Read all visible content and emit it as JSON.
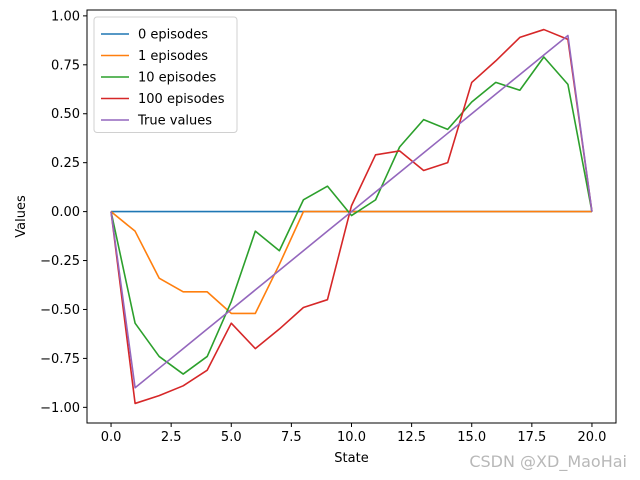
{
  "chart_data": {
    "type": "line",
    "xlabel": "State",
    "ylabel": "Values",
    "xlim": [
      -1,
      21
    ],
    "ylim": [
      -1.08,
      1.03
    ],
    "xticks": [
      "0.0",
      "2.5",
      "5.0",
      "7.5",
      "10.0",
      "12.5",
      "15.0",
      "17.5",
      "20.0"
    ],
    "xtick_values": [
      0,
      2.5,
      5,
      7.5,
      10,
      12.5,
      15,
      17.5,
      20
    ],
    "yticks": [
      "−1.00",
      "−0.75",
      "−0.50",
      "−0.25",
      "0.00",
      "0.25",
      "0.50",
      "0.75",
      "1.00"
    ],
    "ytick_values": [
      -1,
      -0.75,
      -0.5,
      -0.25,
      0,
      0.25,
      0.5,
      0.75,
      1
    ],
    "legend_position": "upper-left",
    "grid": false,
    "x": [
      0,
      1,
      2,
      3,
      4,
      5,
      6,
      7,
      8,
      9,
      10,
      11,
      12,
      13,
      14,
      15,
      16,
      17,
      18,
      19,
      20
    ],
    "series": [
      {
        "name": "0 episodes",
        "color": "#1f77b4",
        "values": [
          0,
          0,
          0,
          0,
          0,
          0,
          0,
          0,
          0,
          0,
          0,
          0,
          0,
          0,
          0,
          0,
          0,
          0,
          0,
          0,
          0
        ]
      },
      {
        "name": "1 episodes",
        "color": "#ff7f0e",
        "values": [
          0,
          -0.1,
          -0.34,
          -0.41,
          -0.41,
          -0.52,
          -0.52,
          -0.27,
          0,
          0,
          0,
          0,
          0,
          0,
          0,
          0,
          0,
          0,
          0,
          0,
          0
        ]
      },
      {
        "name": "10 episodes",
        "color": "#2ca02c",
        "values": [
          0,
          -0.57,
          -0.74,
          -0.83,
          -0.74,
          -0.46,
          -0.1,
          -0.2,
          0.06,
          0.13,
          -0.02,
          0.06,
          0.33,
          0.47,
          0.42,
          0.56,
          0.66,
          0.62,
          0.79,
          0.65,
          0
        ]
      },
      {
        "name": "100 episodes",
        "color": "#d62728",
        "values": [
          0,
          -0.98,
          -0.94,
          -0.89,
          -0.81,
          -0.57,
          -0.7,
          -0.6,
          -0.49,
          -0.45,
          0.03,
          0.29,
          0.31,
          0.21,
          0.25,
          0.66,
          0.77,
          0.89,
          0.93,
          0.88,
          0
        ]
      },
      {
        "name": "True values",
        "color": "#9467bd",
        "values": [
          0,
          -0.9,
          -0.8,
          -0.7,
          -0.6,
          -0.5,
          -0.4,
          -0.3,
          -0.2,
          -0.1,
          0,
          0.1,
          0.2,
          0.3,
          0.4,
          0.5,
          0.6,
          0.7,
          0.8,
          0.9,
          0
        ]
      }
    ]
  },
  "watermark": "CSDN @XD_MaoHai"
}
